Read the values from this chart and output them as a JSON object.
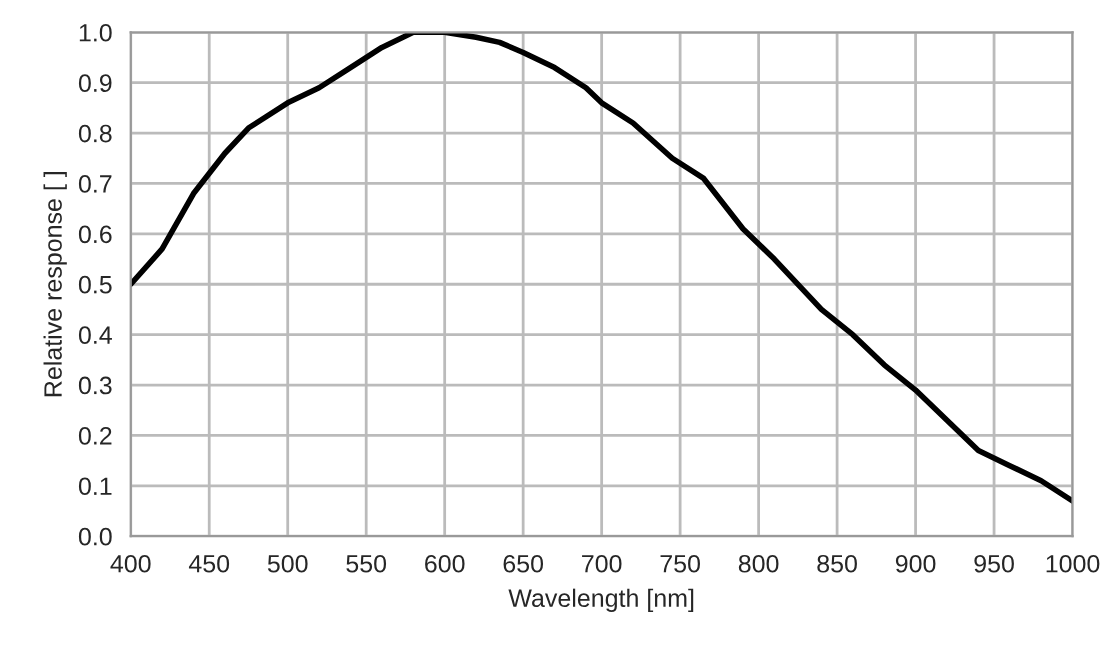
{
  "chart_data": {
    "type": "line",
    "xlabel": "Wavelength [nm]",
    "ylabel": "Relative response [ ]",
    "x": [
      400,
      420,
      440,
      460,
      475,
      500,
      520,
      540,
      560,
      580,
      600,
      620,
      635,
      650,
      670,
      690,
      700,
      720,
      745,
      765,
      790,
      810,
      840,
      860,
      880,
      900,
      920,
      940,
      960,
      980,
      1000
    ],
    "series": [
      {
        "color": "#000000",
        "values": [
          0.5,
          0.57,
          0.68,
          0.76,
          0.81,
          0.86,
          0.89,
          0.93,
          0.97,
          1.0,
          1.0,
          0.99,
          0.98,
          0.96,
          0.93,
          0.89,
          0.86,
          0.82,
          0.75,
          0.71,
          0.61,
          0.55,
          0.45,
          0.4,
          0.34,
          0.29,
          0.23,
          0.17,
          0.14,
          0.11,
          0.07
        ]
      }
    ],
    "xlim": [
      400,
      1000
    ],
    "xticks": [
      400,
      450,
      500,
      550,
      600,
      650,
      700,
      750,
      800,
      850,
      900,
      950,
      1000
    ],
    "ylim": [
      0,
      1
    ],
    "yticks": [
      {
        "value": 0,
        "label": "0.0"
      },
      {
        "value": 0.1,
        "label": "0.1"
      },
      {
        "value": 0.2,
        "label": "0.2"
      },
      {
        "value": 0.3,
        "label": "0.3"
      },
      {
        "value": 0.4,
        "label": "0.4"
      },
      {
        "value": 0.5,
        "label": "0.5"
      },
      {
        "value": 0.6,
        "label": "0.6"
      },
      {
        "value": 0.7,
        "label": "0.7"
      },
      {
        "value": 0.8,
        "label": "0.8"
      },
      {
        "value": 0.9,
        "label": "0.9"
      },
      {
        "value": 1,
        "label": "1.0"
      }
    ],
    "grid": true,
    "line_style": "solid",
    "marker": "none",
    "legend": false
  }
}
